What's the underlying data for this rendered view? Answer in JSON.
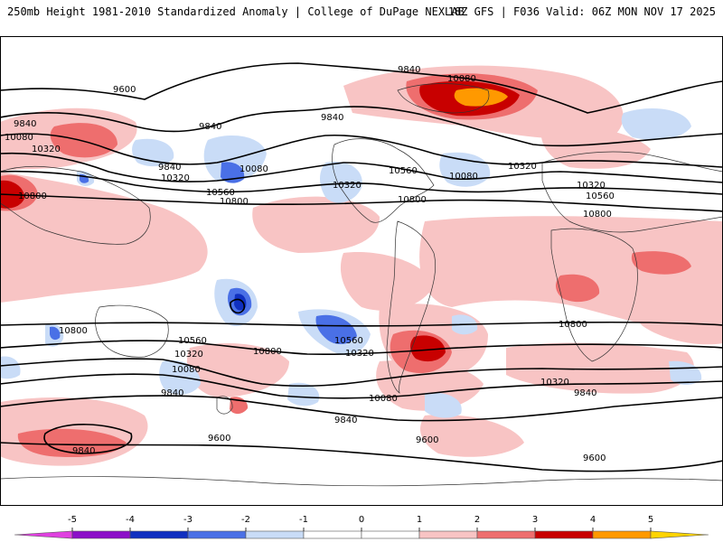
{
  "header": {
    "left": "250mb Height 1981-2010 Standardized Anomaly | College of DuPage NEXLAB",
    "right": "18Z GFS | F036 Valid: 06Z MON NOV 17 2025"
  },
  "contours": [
    {
      "value": "9600",
      "labels": [
        "9600",
        "9600",
        "9600",
        "9600"
      ]
    },
    {
      "value": "9840",
      "labels": [
        "9840",
        "9840",
        "9840",
        "9840",
        "9840",
        "9840",
        "9840",
        "9840",
        "9840"
      ]
    },
    {
      "value": "10080",
      "labels": [
        "10080",
        "10080",
        "10080",
        "10080",
        "10080",
        "10080"
      ]
    },
    {
      "value": "10320",
      "labels": [
        "10320",
        "10320",
        "10320",
        "10320",
        "10320",
        "10320",
        "10320",
        "10320"
      ]
    },
    {
      "value": "10560",
      "labels": [
        "10560",
        "10560",
        "10560",
        "10560",
        "10560"
      ]
    },
    {
      "value": "10800",
      "labels": [
        "10800",
        "10800",
        "10800",
        "10800",
        "10800",
        "10800",
        "10800"
      ]
    }
  ],
  "legend": {
    "ticks": [
      "-5",
      "-4",
      "-3",
      "-2",
      "-1",
      "0",
      "1",
      "2",
      "3",
      "4",
      "5"
    ],
    "colors": [
      "#e040e0",
      "#8c10c8",
      "#1030c0",
      "#4a70e6",
      "#c9dcf7",
      "#ffffff",
      "#ffffff",
      "#f8c4c4",
      "#ee6e6e",
      "#c80000",
      "#ff9900",
      "#ffd400"
    ]
  }
}
